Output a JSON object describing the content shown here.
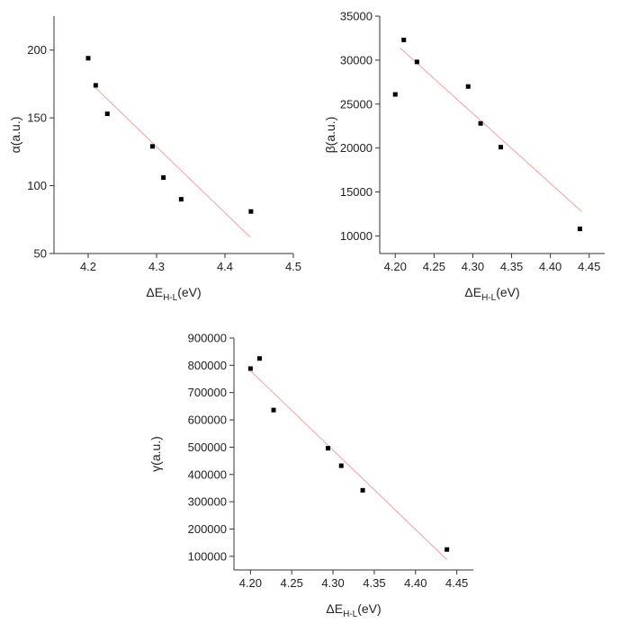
{
  "chart_data": [
    {
      "type": "scatter",
      "title": "",
      "xlabel": "ΔE",
      "xlabel_sub": "H-L",
      "xlabel_unit": "(eV)",
      "ylabel": "α(a.u.)",
      "xlim": [
        4.15,
        4.5
      ],
      "ylim": [
        50,
        225
      ],
      "xticks": [
        4.2,
        4.3,
        4.4,
        4.5
      ],
      "xtick_labels": [
        "4.2",
        "4.3",
        "4.4",
        "4.5"
      ],
      "yticks": [
        50,
        100,
        150,
        200
      ],
      "ytick_labels": [
        "50",
        "100",
        "150",
        "200"
      ],
      "grid": false,
      "points": [
        {
          "x": 4.2,
          "y": 194
        },
        {
          "x": 4.211,
          "y": 174
        },
        {
          "x": 4.228,
          "y": 153
        },
        {
          "x": 4.294,
          "y": 129
        },
        {
          "x": 4.31,
          "y": 106
        },
        {
          "x": 4.336,
          "y": 90
        },
        {
          "x": 4.438,
          "y": 81
        }
      ],
      "fit_line": {
        "x": [
          4.209,
          4.437
        ],
        "y": [
          173,
          62
        ]
      },
      "colors": {
        "points": "#000000",
        "fit": "#f4a0a0"
      }
    },
    {
      "type": "scatter",
      "title": "",
      "xlabel": "ΔE",
      "xlabel_sub": "H-L",
      "xlabel_unit": "(eV)",
      "ylabel": "β(a.u.)",
      "xlim": [
        4.18,
        4.47
      ],
      "ylim": [
        8000,
        35000
      ],
      "xticks": [
        4.2,
        4.25,
        4.3,
        4.35,
        4.4,
        4.45
      ],
      "xtick_labels": [
        "4.20",
        "4.25",
        "4.30",
        "4.35",
        "4.40",
        "4.45"
      ],
      "yticks": [
        10000,
        15000,
        20000,
        25000,
        30000,
        35000
      ],
      "ytick_labels": [
        "10000",
        "15000",
        "20000",
        "25000",
        "30000",
        "35000"
      ],
      "grid": false,
      "points": [
        {
          "x": 4.2,
          "y": 26100
        },
        {
          "x": 4.211,
          "y": 32300
        },
        {
          "x": 4.228,
          "y": 29800
        },
        {
          "x": 4.294,
          "y": 27000
        },
        {
          "x": 4.31,
          "y": 22800
        },
        {
          "x": 4.336,
          "y": 20100
        },
        {
          "x": 4.438,
          "y": 10800
        }
      ],
      "fit_line": {
        "x": [
          4.206,
          4.44
        ],
        "y": [
          31400,
          12800
        ]
      },
      "colors": {
        "points": "#000000",
        "fit": "#f4a0a0"
      }
    },
    {
      "type": "scatter",
      "title": "",
      "xlabel": "ΔE",
      "xlabel_sub": "H-L",
      "xlabel_unit": "(eV)",
      "ylabel": "γ(a.u.)",
      "xlim": [
        4.18,
        4.47
      ],
      "ylim": [
        50000,
        900000
      ],
      "xticks": [
        4.2,
        4.25,
        4.3,
        4.35,
        4.4,
        4.45
      ],
      "xtick_labels": [
        "4.20",
        "4.25",
        "4.30",
        "4.35",
        "4.40",
        "4.45"
      ],
      "yticks": [
        100000,
        200000,
        300000,
        400000,
        500000,
        600000,
        700000,
        800000,
        900000
      ],
      "ytick_labels": [
        "100000",
        "200000",
        "300000",
        "400000",
        "500000",
        "600000",
        "700000",
        "800000",
        "900000"
      ],
      "grid": false,
      "points": [
        {
          "x": 4.2,
          "y": 788000
        },
        {
          "x": 4.211,
          "y": 825000
        },
        {
          "x": 4.228,
          "y": 636000
        },
        {
          "x": 4.294,
          "y": 496000
        },
        {
          "x": 4.31,
          "y": 432000
        },
        {
          "x": 4.336,
          "y": 342000
        },
        {
          "x": 4.438,
          "y": 125000
        }
      ],
      "fit_line": {
        "x": [
          4.2,
          4.438
        ],
        "y": [
          780000,
          88000
        ]
      },
      "colors": {
        "points": "#000000",
        "fit": "#f4a0a0"
      }
    }
  ]
}
